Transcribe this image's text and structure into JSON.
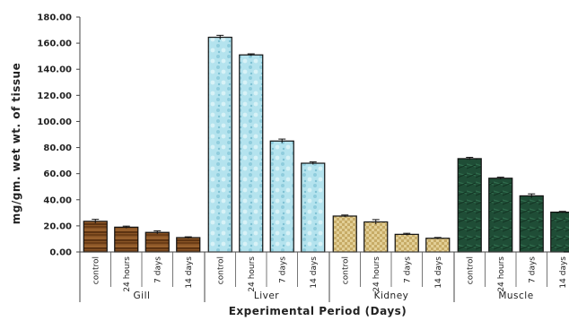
{
  "chart_data": {
    "type": "bar",
    "ylabel": "mg/gm. wet wt. of tissue",
    "xlabel": "Experimental Period (Days)",
    "ylim": [
      0,
      180
    ],
    "yticks": [
      "0.00",
      "20.00",
      "40.00",
      "60.00",
      "80.00",
      "100.00",
      "120.00",
      "140.00",
      "160.00",
      "180.00"
    ],
    "grid": false,
    "groups": [
      {
        "name": "Gill",
        "color": "#7a4a1e",
        "pattern": "wood",
        "categories": [
          "control",
          "24 hours",
          "7 days",
          "14 days"
        ],
        "values": [
          23.5,
          19,
          15,
          11
        ],
        "errors": [
          1.5,
          0.8,
          1.2,
          0.6
        ]
      },
      {
        "name": "Liver",
        "color": "#a9dde9",
        "pattern": "water",
        "categories": [
          "control",
          "24 hours",
          "7 days",
          "14 days"
        ],
        "values": [
          164.5,
          151,
          85,
          68
        ],
        "errors": [
          1.5,
          0.8,
          1.5,
          1.0
        ]
      },
      {
        "name": "Kidney",
        "color": "#d9c48a",
        "pattern": "weave",
        "categories": [
          "control",
          "24 hours",
          "7 days",
          "14 days"
        ],
        "values": [
          27.5,
          23,
          13.5,
          10.5
        ],
        "errors": [
          0.8,
          1.8,
          0.8,
          0.6
        ]
      },
      {
        "name": "Muscle",
        "color": "#1e4f35",
        "pattern": "marble",
        "categories": [
          "control",
          "24 hours",
          "7 days",
          "14 days"
        ],
        "values": [
          71.5,
          56.5,
          43,
          30.5
        ],
        "errors": [
          1.0,
          0.8,
          1.5,
          0.6
        ]
      }
    ]
  }
}
